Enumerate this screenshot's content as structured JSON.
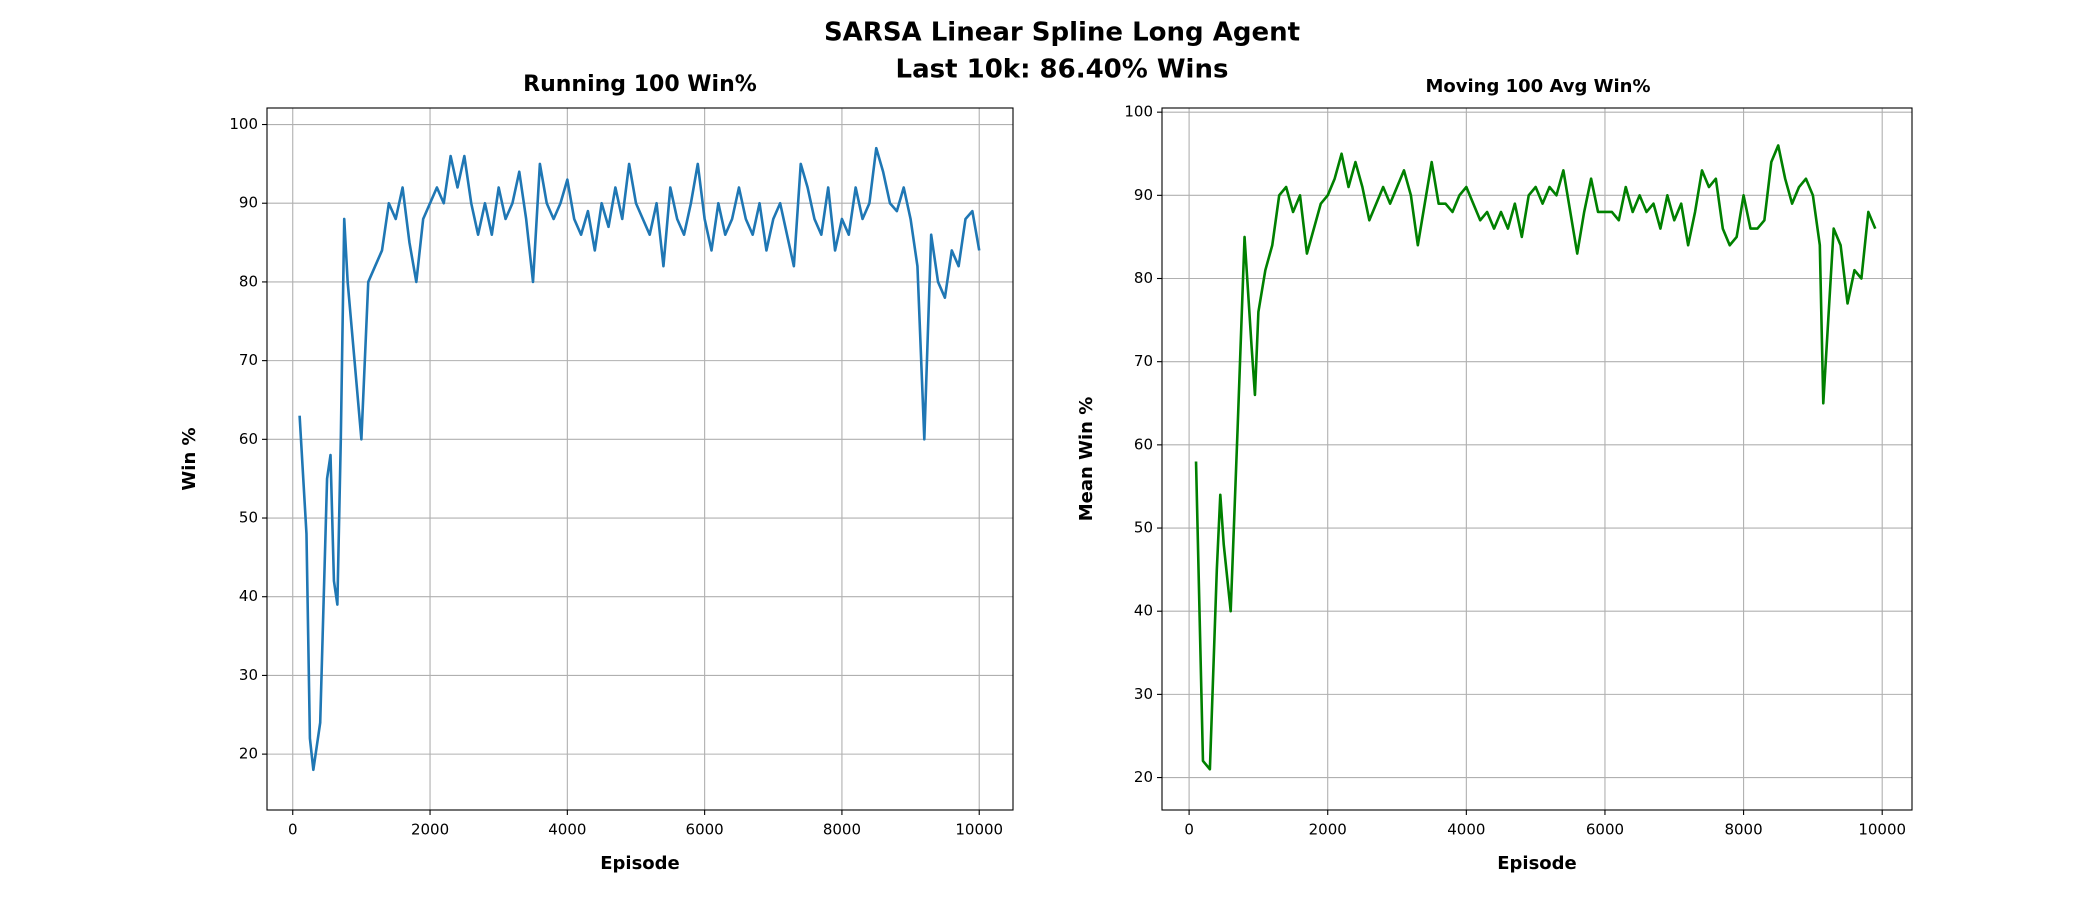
{
  "suptitle": [
    "SARSA Linear Spline Long Agent",
    "Last 10k: 86.40% Wins"
  ],
  "chart_data": [
    {
      "type": "line",
      "title": "Running 100 Win%",
      "xlabel": "Episode",
      "ylabel": "Win %",
      "color": "#1f77b4",
      "x": [
        100,
        200,
        250,
        300,
        400,
        500,
        550,
        600,
        650,
        700,
        750,
        800,
        900,
        1000,
        1100,
        1200,
        1300,
        1400,
        1500,
        1600,
        1700,
        1800,
        1900,
        2000,
        2100,
        2200,
        2300,
        2400,
        2500,
        2600,
        2700,
        2800,
        2900,
        3000,
        3100,
        3200,
        3300,
        3400,
        3500,
        3600,
        3700,
        3800,
        3900,
        4000,
        4100,
        4200,
        4300,
        4400,
        4500,
        4600,
        4700,
        4800,
        4900,
        5000,
        5100,
        5200,
        5300,
        5400,
        5500,
        5600,
        5700,
        5800,
        5900,
        6000,
        6100,
        6200,
        6300,
        6400,
        6500,
        6600,
        6700,
        6800,
        6900,
        7000,
        7100,
        7200,
        7300,
        7400,
        7500,
        7600,
        7700,
        7800,
        7900,
        8000,
        8100,
        8200,
        8300,
        8400,
        8500,
        8600,
        8700,
        8800,
        8900,
        9000,
        9100,
        9200,
        9300,
        9400,
        9500,
        9600,
        9700,
        9800,
        9900,
        10000
      ],
      "values": [
        63,
        48,
        22,
        18,
        24,
        55,
        58,
        42,
        39,
        60,
        88,
        80,
        70,
        60,
        80,
        82,
        84,
        90,
        88,
        92,
        85,
        80,
        88,
        90,
        92,
        90,
        96,
        92,
        96,
        90,
        86,
        90,
        86,
        92,
        88,
        90,
        94,
        88,
        80,
        95,
        90,
        88,
        90,
        93,
        88,
        86,
        89,
        84,
        90,
        87,
        92,
        88,
        95,
        90,
        88,
        86,
        90,
        82,
        92,
        88,
        86,
        90,
        95,
        88,
        84,
        90,
        86,
        88,
        92,
        88,
        86,
        90,
        84,
        88,
        90,
        86,
        82,
        95,
        92,
        88,
        86,
        92,
        84,
        88,
        86,
        92,
        88,
        90,
        97,
        94,
        90,
        89,
        92,
        88,
        82,
        60,
        86,
        80,
        78,
        84,
        82,
        88,
        89,
        84
      ],
      "xlim": [
        -375,
        10492
      ],
      "ylim": [
        12.9,
        102.1
      ],
      "xticks": [
        0,
        2000,
        4000,
        6000,
        8000,
        10000
      ],
      "yticks": [
        20,
        30,
        40,
        50,
        60,
        70,
        80,
        90,
        100
      ],
      "grid": true
    },
    {
      "type": "line",
      "title": "Moving 100 Avg Win%",
      "xlabel": "Episode",
      "ylabel": "Mean Win %",
      "color": "#008000",
      "x": [
        100,
        200,
        300,
        400,
        450,
        500,
        600,
        700,
        800,
        900,
        950,
        1000,
        1100,
        1200,
        1300,
        1400,
        1500,
        1600,
        1700,
        1800,
        1900,
        2000,
        2100,
        2200,
        2300,
        2400,
        2500,
        2600,
        2700,
        2800,
        2900,
        3000,
        3100,
        3200,
        3300,
        3400,
        3500,
        3600,
        3700,
        3800,
        3900,
        4000,
        4100,
        4200,
        4300,
        4400,
        4500,
        4600,
        4700,
        4800,
        4900,
        5000,
        5100,
        5200,
        5300,
        5400,
        5500,
        5600,
        5700,
        5800,
        5900,
        6000,
        6100,
        6200,
        6300,
        6400,
        6500,
        6600,
        6700,
        6800,
        6900,
        7000,
        7100,
        7200,
        7300,
        7400,
        7500,
        7600,
        7700,
        7800,
        7900,
        8000,
        8100,
        8200,
        8300,
        8400,
        8500,
        8600,
        8700,
        8800,
        8900,
        9000,
        9100,
        9150,
        9200,
        9300,
        9400,
        9500,
        9600,
        9700,
        9800,
        9900
      ],
      "values": [
        58,
        22,
        21,
        45,
        54,
        48,
        40,
        62,
        85,
        72,
        66,
        76,
        81,
        84,
        90,
        91,
        88,
        90,
        83,
        86,
        89,
        90,
        92,
        95,
        91,
        94,
        91,
        87,
        89,
        91,
        89,
        91,
        93,
        90,
        84,
        89,
        94,
        89,
        89,
        88,
        90,
        91,
        89,
        87,
        88,
        86,
        88,
        86,
        89,
        85,
        90,
        91,
        89,
        91,
        90,
        93,
        88,
        83,
        88,
        92,
        88,
        88,
        88,
        87,
        91,
        88,
        90,
        88,
        89,
        86,
        90,
        87,
        89,
        84,
        88,
        93,
        91,
        92,
        86,
        84,
        85,
        90,
        86,
        86,
        87,
        94,
        96,
        92,
        89,
        91,
        92,
        90,
        84,
        65,
        72,
        86,
        84,
        77,
        81,
        80,
        88,
        86
      ],
      "xlim": [
        -391,
        10430
      ],
      "ylim": [
        16.1,
        100.5
      ],
      "xticks": [
        0,
        2000,
        4000,
        6000,
        8000,
        10000
      ],
      "yticks": [
        20,
        30,
        40,
        50,
        60,
        70,
        80,
        90,
        100
      ],
      "grid": true
    }
  ]
}
